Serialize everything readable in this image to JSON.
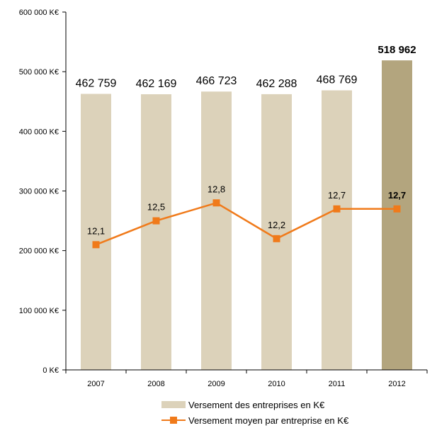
{
  "chart_data": {
    "type": "bar",
    "categories": [
      "2007",
      "2008",
      "2009",
      "2010",
      "2011",
      "2012"
    ],
    "series": [
      {
        "name": "Versement des entreprises en K€",
        "type": "bar",
        "axis": "left",
        "values": [
          462759,
          462169,
          466723,
          462288,
          468769,
          518962
        ],
        "labels": [
          "462 759",
          "462 169",
          "466 723",
          "462 288",
          "468 769",
          "518 962"
        ],
        "color": "#dcd2ba",
        "highlight_color": "#b3a57e",
        "highlight_index": 5
      },
      {
        "name": "Versement moyen par entreprise en K€",
        "type": "line",
        "axis": "secondary",
        "values": [
          12.1,
          12.5,
          12.8,
          12.2,
          12.7,
          12.7
        ],
        "labels": [
          "12,1",
          "12,5",
          "12,8",
          "12,2",
          "12,7",
          "12,7"
        ],
        "color": "#f07a1a"
      }
    ],
    "yaxis": {
      "ylim": [
        0,
        600000
      ],
      "ticks": [
        0,
        100000,
        200000,
        300000,
        400000,
        500000,
        600000
      ],
      "tick_labels": [
        "0 K€",
        "100 000 K€",
        "200 000 K€",
        "300 000 K€",
        "400 000 K€",
        "500 000 K€",
        "600 000 K€"
      ]
    },
    "legend": "bottom",
    "grid": false
  }
}
